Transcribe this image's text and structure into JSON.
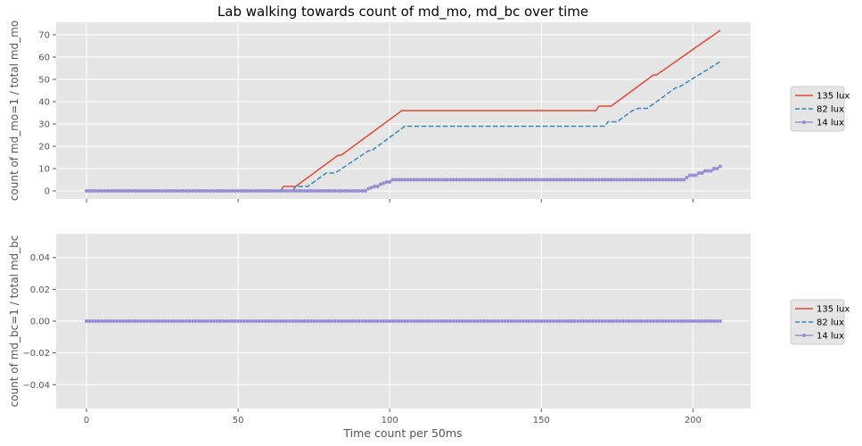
{
  "figure": {
    "title": "Lab walking towards count of md_mo, md_bc over time",
    "xlabel": "Time count per 50ms"
  },
  "chart_data": [
    {
      "type": "line",
      "title": "Lab walking towards count of md_mo, md_bc over time",
      "xlabel": "",
      "ylabel": "count of md_mo=1 / total md_mo",
      "xlim": [
        -10,
        219
      ],
      "ylim": [
        -3.6,
        75.6
      ],
      "xticks": [
        0,
        50,
        100,
        150,
        200
      ],
      "xtick_labels_visible": false,
      "yticks": [
        0,
        10,
        20,
        30,
        40,
        50,
        60,
        70
      ],
      "grid": true,
      "legend": "right",
      "legend_entries": [
        "135 lux",
        "82 lux",
        "14 lux"
      ],
      "series": [
        {
          "name": "135 lux",
          "color": "#E24A33",
          "style": "solid",
          "marker": "none",
          "points": [
            [
              0,
              0
            ],
            [
              64,
              0
            ],
            [
              65,
              2
            ],
            [
              69,
              2
            ],
            [
              83,
              16
            ],
            [
              84,
              16
            ],
            [
              104,
              36
            ],
            [
              168,
              36
            ],
            [
              169,
              38
            ],
            [
              173,
              38
            ],
            [
              187,
              52
            ],
            [
              188,
              52
            ],
            [
              209,
              72
            ]
          ]
        },
        {
          "name": "82 lux",
          "color": "#348ABD",
          "style": "dashed",
          "marker": "none",
          "points": [
            [
              0,
              0
            ],
            [
              68,
              0
            ],
            [
              69,
              2
            ],
            [
              73,
              2
            ],
            [
              79,
              8
            ],
            [
              82,
              8
            ],
            [
              93,
              18
            ],
            [
              94,
              18
            ],
            [
              105,
              29
            ],
            [
              171,
              29
            ],
            [
              172,
              31
            ],
            [
              175,
              31
            ],
            [
              180,
              36
            ],
            [
              182,
              37
            ],
            [
              185,
              37
            ],
            [
              194,
              46
            ],
            [
              196,
              47
            ],
            [
              209,
              58
            ]
          ]
        },
        {
          "name": "14 lux",
          "color": "#988ED5",
          "style": "solid",
          "marker": "circle",
          "points": [
            [
              0,
              0
            ],
            [
              92,
              0
            ],
            [
              93,
              1
            ],
            [
              95,
              2
            ],
            [
              96,
              2
            ],
            [
              97,
              3
            ],
            [
              99,
              4
            ],
            [
              100,
              4
            ],
            [
              101,
              5
            ],
            [
              197,
              5
            ],
            [
              198,
              6
            ],
            [
              199,
              7
            ],
            [
              201,
              7
            ],
            [
              202,
              8
            ],
            [
              203,
              8
            ],
            [
              204,
              9
            ],
            [
              206,
              9
            ],
            [
              207,
              10
            ],
            [
              208,
              10
            ],
            [
              209,
              11
            ]
          ]
        }
      ]
    },
    {
      "type": "line",
      "title": "",
      "xlabel": "Time count per 50ms",
      "ylabel": "count of md_bc=1 / total md_bc",
      "xlim": [
        -10,
        219
      ],
      "ylim": [
        -0.055,
        0.055
      ],
      "xticks": [
        0,
        50,
        100,
        150,
        200
      ],
      "xtick_labels_visible": true,
      "yticks": [
        -0.04,
        -0.02,
        0.0,
        0.02,
        0.04
      ],
      "ytick_labels": [
        "−0.04",
        "−0.02",
        "0.00",
        "0.02",
        "0.04"
      ],
      "grid": true,
      "legend": "right",
      "legend_entries": [
        "135 lux",
        "82 lux",
        "14 lux"
      ],
      "series": [
        {
          "name": "135 lux",
          "color": "#E24A33",
          "style": "solid",
          "marker": "none",
          "points": [
            [
              0,
              0
            ],
            [
              209,
              0
            ]
          ]
        },
        {
          "name": "82 lux",
          "color": "#348ABD",
          "style": "dashed",
          "marker": "none",
          "points": [
            [
              0,
              0
            ],
            [
              209,
              0
            ]
          ]
        },
        {
          "name": "14 lux",
          "color": "#988ED5",
          "style": "solid",
          "marker": "circle",
          "points": [
            [
              0,
              0
            ],
            [
              209,
              0
            ]
          ]
        }
      ]
    }
  ]
}
